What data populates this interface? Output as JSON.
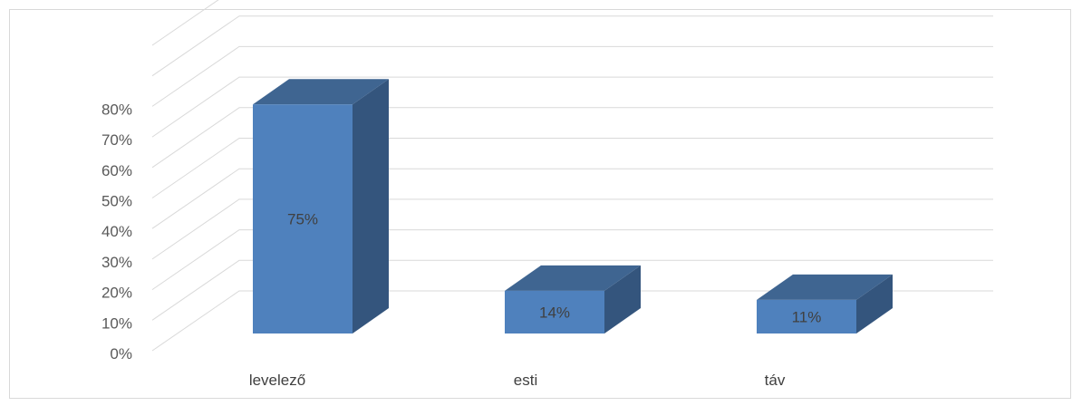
{
  "chart_data": {
    "type": "bar",
    "style": "3d-column",
    "categories": [
      "levelező",
      "esti",
      "táv"
    ],
    "values": [
      75,
      14,
      11
    ],
    "data_labels": [
      "75%",
      "14%",
      "11%"
    ],
    "y_ticks": [
      "0%",
      "10%",
      "20%",
      "30%",
      "40%",
      "50%",
      "60%",
      "70%",
      "80%"
    ],
    "ylim": [
      0,
      100
    ],
    "grid": true,
    "legend": false,
    "colors": {
      "front": "#4f81bd",
      "top": "#3f6591",
      "side": "#34557d",
      "grid": "#d9d9d9"
    }
  }
}
